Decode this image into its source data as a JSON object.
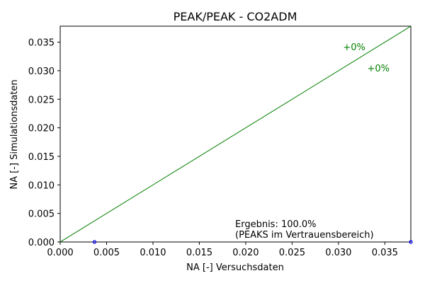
{
  "chart_data": {
    "type": "scatter",
    "title": "PEAK/PEAK - CO2ADM",
    "xlabel": "NA [-] Versuchsdaten",
    "ylabel": "NA [-] Simulationsdaten",
    "xlim": [
      0,
      0.0378
    ],
    "ylim": [
      0,
      0.0378
    ],
    "x_ticks": [
      "0.000",
      "0.005",
      "0.010",
      "0.015",
      "0.020",
      "0.025",
      "0.030",
      "0.035"
    ],
    "y_ticks": [
      "0.000",
      "0.005",
      "0.010",
      "0.015",
      "0.020",
      "0.025",
      "0.030",
      "0.035"
    ],
    "grid": false,
    "reference_lines": [
      {
        "label": "+0%",
        "x": [
          0,
          0.0378
        ],
        "y": [
          0,
          0.0378
        ],
        "color": "#007f00",
        "label_at": [
          0.0305,
          0.0342
        ]
      },
      {
        "label": "+0%",
        "x": [
          0,
          0.0378
        ],
        "y": [
          0,
          0.0378
        ],
        "color": "#007f00",
        "label_at": [
          0.0331,
          0.0305
        ]
      }
    ],
    "points": [
      {
        "x": 0.0037,
        "y": 0.0,
        "color": "#0000ff"
      },
      {
        "x": 0.0378,
        "y": 0.0,
        "color": "#0000ff"
      }
    ],
    "result": {
      "line1": "Ergebnis: 100.0%",
      "line2": "(PEAKS im Vertrauensbereich)"
    }
  }
}
